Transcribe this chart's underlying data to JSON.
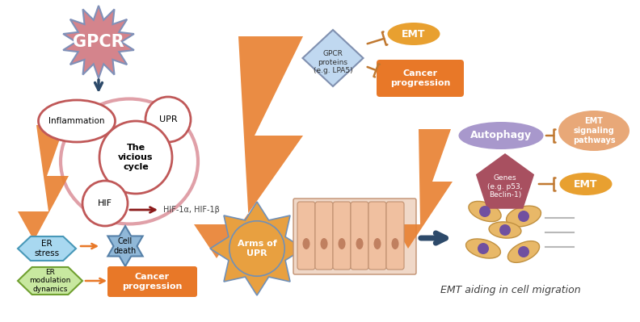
{
  "bg_color": "#ffffff",
  "gpcr_color": "#d4848c",
  "gpcr_edge_color": "#8090b8",
  "gpcr_text": "GPCR",
  "vicious_cycle_color": "#e0a0a8",
  "inflammation_text": "Inflammation",
  "upr_text": "UPR",
  "hif_text": "HIF",
  "vicious_cycle_text": "The\nvicious\ncycle",
  "hif_arrow_text": "HIF-1α, HIF-1β",
  "er_stress_color": "#a8d8f0",
  "er_stress_text": "ER\nstress",
  "cell_death_color": "#90b8d8",
  "cell_death_text": "Cell\ndeath",
  "er_mod_color": "#c8e8a0",
  "er_mod_text": "ER\nmodulation\ndynamics",
  "cancer_prog_orange_color": "#e87828",
  "cancer_prog_orange_text": "Cancer\nprogression",
  "lightning_color": "#e88030",
  "arms_upr_color": "#e8a040",
  "arms_upr_text": "Arms of\nUPR",
  "arms_upr_ray_color": "#7090b8",
  "gpcr_proteins_color": "#c0d8f0",
  "gpcr_proteins_edge": "#8090b0",
  "gpcr_proteins_text": "GPCR\nproteins\n(e.g. LPA5)",
  "emt_orange_color": "#e8a030",
  "emt_text": "EMT",
  "cancer_prog2_color": "#e87828",
  "cancer_prog2_text": "Cancer\nprogression",
  "autophagy_color": "#a898cc",
  "autophagy_text": "Autophagy",
  "emt_signaling_color": "#e8a878",
  "emt_signaling_text": "EMT\nsignaling\npathways",
  "genes_color": "#a85060",
  "genes_text": "Genes\n(e.g. p53,\nBeclin-1)",
  "emt2_color": "#e8a030",
  "emt2_text": "EMT",
  "emt_migration_text": "EMT aiding in cell migration",
  "arrow_dark": "#2d4a6a",
  "arrow_orange": "#e87828",
  "inhibit_color": "#c07830",
  "circle_edge": "#c05858",
  "hif_arrow_color": "#8b1a1a"
}
